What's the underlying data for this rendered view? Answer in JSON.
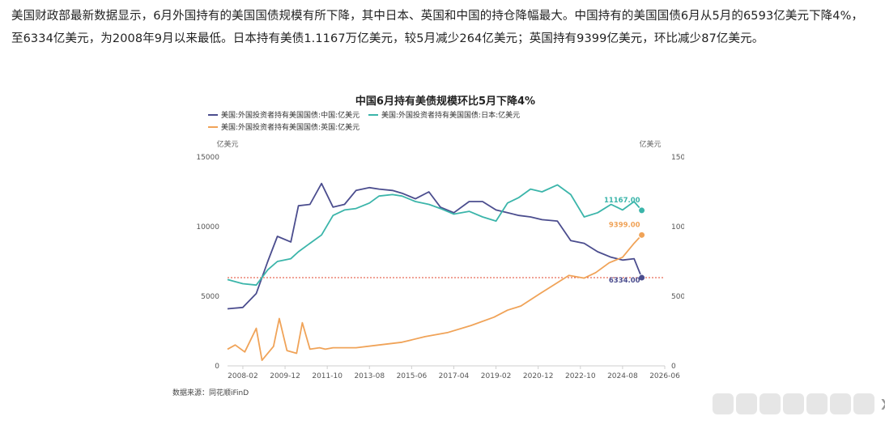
{
  "article": {
    "text": "美国财政部最新数据显示，6月外国持有的美国国债规模有所下降，其中日本、英国和中国的持仓降幅最大。中国持有的美国国债6月从5月的6593亿美元下降4%，至6334亿美元，为2008年9月以来最低。日本持有美债1.1167万亿美元，较5月减少264亿美元；英国持有9399亿美元，环比减少87亿美元。"
  },
  "chart_data": {
    "type": "line",
    "title": "中国6月持有美债规模环比5月下降4%",
    "source": "数据来源：同花顺iFinD",
    "y_unit_left": "亿美元",
    "y_unit_right": "亿美元",
    "ylim": [
      0,
      15000
    ],
    "y_ticks": [
      "0",
      "5000",
      "10000",
      "15000"
    ],
    "x_ticks": [
      "2008-02",
      "2009-12",
      "2011-10",
      "2013-08",
      "2015-06",
      "2017-04",
      "2019-02",
      "2020-12",
      "2022-10",
      "2024-08",
      "2026-06"
    ],
    "reference_line": {
      "value": 6334,
      "color": "#e0452e"
    },
    "series": [
      {
        "name": "美国:外国投资者持有美国国债:中国:亿美元",
        "color": "#4b4d8e",
        "end_label": "6334.00",
        "x": [
          "2007-06",
          "2008-02",
          "2008-09",
          "2009-03",
          "2009-08",
          "2010-03",
          "2010-07",
          "2011-01",
          "2011-07",
          "2012-01",
          "2012-07",
          "2013-01",
          "2013-08",
          "2014-01",
          "2014-08",
          "2015-01",
          "2015-08",
          "2016-03",
          "2016-09",
          "2017-04",
          "2017-12",
          "2018-07",
          "2019-02",
          "2019-08",
          "2020-02",
          "2020-08",
          "2021-02",
          "2021-10",
          "2022-05",
          "2022-12",
          "2023-07",
          "2024-02",
          "2024-08",
          "2025-02",
          "2025-06"
        ],
        "values": [
          4100,
          4200,
          5200,
          7500,
          9300,
          8900,
          11500,
          11600,
          13100,
          11400,
          11600,
          12600,
          12800,
          12700,
          12600,
          12400,
          12000,
          12500,
          11400,
          11000,
          11800,
          11800,
          11200,
          11000,
          10800,
          10700,
          10500,
          10400,
          9000,
          8800,
          8200,
          7800,
          7600,
          7700,
          6334
        ]
      },
      {
        "name": "美国:外国投资者持有美国国债:日本:亿美元",
        "color": "#3bb5aa",
        "end_label": "11167.00",
        "x": [
          "2007-06",
          "2008-02",
          "2008-09",
          "2009-03",
          "2009-08",
          "2010-03",
          "2010-07",
          "2011-01",
          "2011-07",
          "2012-01",
          "2012-07",
          "2013-01",
          "2013-08",
          "2014-01",
          "2014-08",
          "2015-01",
          "2015-08",
          "2016-03",
          "2016-09",
          "2017-04",
          "2017-12",
          "2018-07",
          "2019-02",
          "2019-08",
          "2020-02",
          "2020-08",
          "2021-02",
          "2021-10",
          "2022-05",
          "2022-12",
          "2023-07",
          "2024-02",
          "2024-08",
          "2025-02",
          "2025-06"
        ],
        "values": [
          6200,
          5900,
          5800,
          6900,
          7500,
          7700,
          8200,
          8800,
          9400,
          10800,
          11200,
          11300,
          11700,
          12200,
          12300,
          12200,
          11800,
          11600,
          11300,
          10900,
          11100,
          10700,
          10400,
          11700,
          12100,
          12700,
          12500,
          13000,
          12300,
          10700,
          11000,
          11600,
          11200,
          11800,
          11167
        ]
      },
      {
        "name": "美国:外国投资者持有美国国债:英国:亿美元",
        "color": "#f0a358",
        "end_label": "9399.00",
        "x": [
          "2007-06",
          "2007-10",
          "2008-03",
          "2008-09",
          "2008-12",
          "2009-06",
          "2009-09",
          "2010-01",
          "2010-06",
          "2010-09",
          "2011-01",
          "2011-06",
          "2011-09",
          "2012-01",
          "2013-01",
          "2014-01",
          "2015-01",
          "2016-01",
          "2017-01",
          "2018-01",
          "2019-01",
          "2019-08",
          "2020-03",
          "2021-01",
          "2021-08",
          "2022-04",
          "2022-12",
          "2023-06",
          "2024-01",
          "2024-08",
          "2025-02",
          "2025-06"
        ],
        "values": [
          1200,
          1500,
          1000,
          2700,
          400,
          1400,
          3400,
          1100,
          900,
          3100,
          1200,
          1300,
          1200,
          1300,
          1300,
          1500,
          1700,
          2100,
          2400,
          2900,
          3500,
          4000,
          4300,
          5200,
          5800,
          6500,
          6300,
          6700,
          7400,
          7800,
          8800,
          9399
        ]
      }
    ]
  }
}
